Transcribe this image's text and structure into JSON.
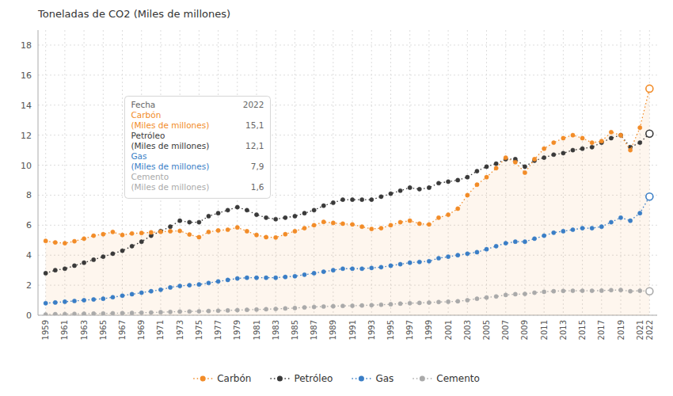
{
  "chart_data": {
    "type": "line",
    "title": "Toneladas de CO2 (Miles de millones)",
    "x": [
      1959,
      1960,
      1961,
      1962,
      1963,
      1964,
      1965,
      1966,
      1967,
      1968,
      1969,
      1970,
      1971,
      1972,
      1973,
      1974,
      1975,
      1976,
      1977,
      1978,
      1979,
      1980,
      1981,
      1982,
      1983,
      1984,
      1985,
      1986,
      1987,
      1988,
      1989,
      1990,
      1991,
      1992,
      1993,
      1994,
      1995,
      1996,
      1997,
      1998,
      1999,
      2000,
      2001,
      2002,
      2003,
      2004,
      2005,
      2006,
      2007,
      2008,
      2009,
      2010,
      2011,
      2012,
      2013,
      2014,
      2015,
      2016,
      2017,
      2018,
      2019,
      2020,
      2021,
      2022
    ],
    "series": [
      {
        "name": "Carbón",
        "color": "#F28C28",
        "marker": "circle",
        "line_style": "dotted",
        "values": [
          4.95,
          4.85,
          4.8,
          4.93,
          5.1,
          5.3,
          5.4,
          5.55,
          5.35,
          5.45,
          5.48,
          5.52,
          5.56,
          5.6,
          5.62,
          5.38,
          5.2,
          5.55,
          5.65,
          5.7,
          5.85,
          5.6,
          5.35,
          5.2,
          5.18,
          5.4,
          5.6,
          5.8,
          6.0,
          6.22,
          6.15,
          6.1,
          6.05,
          5.9,
          5.75,
          5.8,
          6.0,
          6.2,
          6.3,
          6.1,
          6.05,
          6.5,
          6.7,
          7.1,
          8.0,
          8.7,
          9.2,
          9.8,
          10.5,
          10.2,
          9.5,
          10.4,
          11.1,
          11.5,
          11.8,
          12.0,
          11.8,
          11.5,
          11.6,
          12.2,
          12.0,
          11.0,
          12.5,
          15.1
        ]
      },
      {
        "name": "Petróleo",
        "color": "#3A3A3A",
        "marker": "circle",
        "line_style": "dotted",
        "values": [
          2.8,
          3.0,
          3.1,
          3.3,
          3.5,
          3.7,
          3.9,
          4.1,
          4.3,
          4.6,
          4.9,
          5.3,
          5.6,
          5.9,
          6.3,
          6.2,
          6.2,
          6.6,
          6.8,
          7.0,
          7.2,
          7.0,
          6.7,
          6.5,
          6.4,
          6.5,
          6.6,
          6.8,
          7.0,
          7.3,
          7.5,
          7.7,
          7.7,
          7.7,
          7.7,
          7.9,
          8.1,
          8.3,
          8.5,
          8.4,
          8.5,
          8.8,
          8.9,
          9.0,
          9.2,
          9.6,
          9.9,
          10.1,
          10.4,
          10.4,
          9.9,
          10.3,
          10.5,
          10.7,
          10.8,
          11.0,
          11.1,
          11.2,
          11.5,
          11.8,
          12.0,
          11.2,
          11.5,
          12.1
        ]
      },
      {
        "name": "Gas",
        "color": "#3A7EC6",
        "marker": "circle",
        "line_style": "dotted",
        "values": [
          0.8,
          0.85,
          0.9,
          0.95,
          1.0,
          1.05,
          1.1,
          1.2,
          1.3,
          1.4,
          1.5,
          1.6,
          1.7,
          1.85,
          1.95,
          2.0,
          2.05,
          2.15,
          2.25,
          2.35,
          2.45,
          2.5,
          2.5,
          2.5,
          2.5,
          2.55,
          2.6,
          2.7,
          2.8,
          2.9,
          3.0,
          3.1,
          3.1,
          3.1,
          3.15,
          3.2,
          3.3,
          3.4,
          3.5,
          3.55,
          3.6,
          3.8,
          3.9,
          4.0,
          4.1,
          4.2,
          4.4,
          4.6,
          4.8,
          4.9,
          4.9,
          5.1,
          5.3,
          5.5,
          5.6,
          5.7,
          5.8,
          5.8,
          5.9,
          6.2,
          6.5,
          6.3,
          6.8,
          7.9
        ]
      },
      {
        "name": "Cemento",
        "color": "#AAAAAA",
        "marker": "circle",
        "line_style": "dotted",
        "values": [
          0.05,
          0.07,
          0.08,
          0.09,
          0.1,
          0.11,
          0.12,
          0.13,
          0.14,
          0.15,
          0.17,
          0.18,
          0.2,
          0.22,
          0.24,
          0.25,
          0.26,
          0.28,
          0.3,
          0.32,
          0.34,
          0.36,
          0.38,
          0.4,
          0.42,
          0.45,
          0.48,
          0.52,
          0.55,
          0.58,
          0.6,
          0.62,
          0.63,
          0.65,
          0.67,
          0.7,
          0.73,
          0.77,
          0.8,
          0.82,
          0.84,
          0.88,
          0.9,
          0.93,
          1.0,
          1.1,
          1.18,
          1.25,
          1.35,
          1.4,
          1.42,
          1.5,
          1.56,
          1.6,
          1.62,
          1.63,
          1.63,
          1.63,
          1.64,
          1.67,
          1.68,
          1.6,
          1.63,
          1.6
        ]
      }
    ],
    "xlim": [
      1958.2,
      2022.8
    ],
    "xticks": [
      1959,
      1961,
      1963,
      1965,
      1967,
      1969,
      1971,
      1973,
      1975,
      1977,
      1979,
      1981,
      1983,
      1985,
      1987,
      1989,
      1991,
      1993,
      1995,
      1997,
      1999,
      2001,
      2003,
      2005,
      2007,
      2009,
      2011,
      2013,
      2015,
      2017,
      2019,
      2021,
      2022
    ],
    "ylim": [
      0,
      19
    ],
    "yticks": [
      0,
      2,
      4,
      6,
      8,
      10,
      12,
      14,
      16,
      18
    ],
    "grid": true,
    "legend": "bottom",
    "annotations": [
      {
        "text": "Fecha",
        "value_text": "2022"
      },
      {
        "text": "Carbón",
        "series": 0
      },
      {
        "text": "(Miles de millones)",
        "value_text": "15,1",
        "series": 0
      },
      {
        "text": "Petróleo",
        "series": 1
      },
      {
        "text": "(Miles de millones)",
        "value_text": "12,1",
        "series": 1
      },
      {
        "text": "Gas",
        "series": 2
      },
      {
        "text": "(Miles de millones)",
        "value_text": "7,9",
        "series": 2
      },
      {
        "text": "Cemento",
        "series": 3
      },
      {
        "text": "(Miles de millones)",
        "value_text": "1,6",
        "series": 3
      }
    ]
  }
}
